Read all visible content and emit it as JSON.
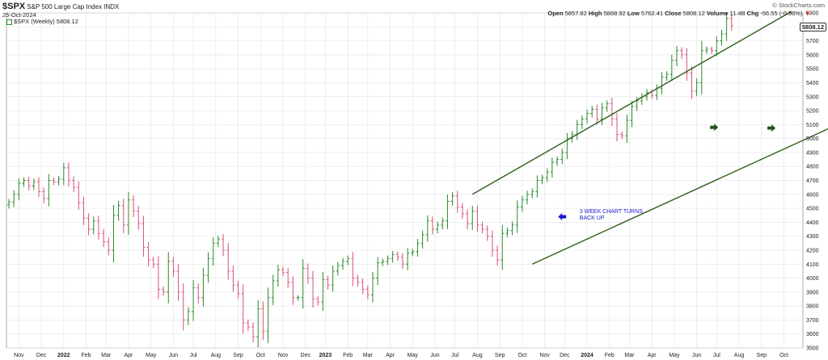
{
  "header": {
    "symbol": "$SPX",
    "name": "S&P 500 Large Cap Index",
    "exchange": "INDX",
    "date": "25-Oct-2024",
    "legend": "$SPX (Weekly) 5808.12",
    "watermark": "© StockCharts.com",
    "open_label": "Open",
    "open": "5857.82",
    "high_label": "High",
    "high": "5868.92",
    "low_label": "Low",
    "low": "5762.41",
    "close_label": "Close",
    "close": "5808.12",
    "volume_label": "Volume",
    "volume": "11.4B",
    "chg_label": "Chg",
    "chg": "-56.55 (-0.96%)",
    "chg_arrow": "▼",
    "last_price": "5808.12"
  },
  "colors": {
    "up": "#2a8a2a",
    "down": "#d9507a",
    "channel": "#2e5e1e",
    "grid": "#e6e6e6",
    "annotation_text": "#1a1acc",
    "annotation_arrow": "#1a1acc",
    "marker_arrow": "#24521e"
  },
  "chart_data": {
    "type": "ohlc",
    "title": "$SPX S&P 500 Large Cap Index INDX",
    "interval": "weekly",
    "xlabel": "",
    "ylabel": "",
    "ylim": [
      3500,
      5900
    ],
    "y_ticks": [
      3500,
      3600,
      3700,
      3800,
      3900,
      4000,
      4100,
      4200,
      4300,
      4400,
      4500,
      4600,
      4700,
      4800,
      4900,
      5000,
      5100,
      5200,
      5300,
      5400,
      5500,
      5600,
      5700,
      5800,
      5900
    ],
    "x_ticks": [
      {
        "label": "Nov",
        "idx": 2,
        "bold": false
      },
      {
        "label": "Dec",
        "idx": 6.5,
        "bold": false
      },
      {
        "label": "2022",
        "idx": 11,
        "bold": true
      },
      {
        "label": "Feb",
        "idx": 15.5,
        "bold": false
      },
      {
        "label": "Mar",
        "idx": 19.5,
        "bold": false
      },
      {
        "label": "Apr",
        "idx": 24,
        "bold": false
      },
      {
        "label": "May",
        "idx": 28.5,
        "bold": false
      },
      {
        "label": "Jun",
        "idx": 33,
        "bold": false
      },
      {
        "label": "Jul",
        "idx": 37,
        "bold": false
      },
      {
        "label": "Aug",
        "idx": 41.5,
        "bold": false
      },
      {
        "label": "Sep",
        "idx": 46,
        "bold": false
      },
      {
        "label": "Oct",
        "idx": 50.5,
        "bold": false
      },
      {
        "label": "Nov",
        "idx": 55,
        "bold": false
      },
      {
        "label": "Dec",
        "idx": 59.5,
        "bold": false
      },
      {
        "label": "2023",
        "idx": 63.5,
        "bold": true
      },
      {
        "label": "Feb",
        "idx": 68,
        "bold": false
      },
      {
        "label": "Mar",
        "idx": 72,
        "bold": false
      },
      {
        "label": "Apr",
        "idx": 76.5,
        "bold": false
      },
      {
        "label": "May",
        "idx": 81,
        "bold": false
      },
      {
        "label": "Jun",
        "idx": 85.5,
        "bold": false
      },
      {
        "label": "Jul",
        "idx": 89.5,
        "bold": false
      },
      {
        "label": "Aug",
        "idx": 94,
        "bold": false
      },
      {
        "label": "Sep",
        "idx": 98.5,
        "bold": false
      },
      {
        "label": "Oct",
        "idx": 103,
        "bold": false
      },
      {
        "label": "Nov",
        "idx": 107.5,
        "bold": false
      },
      {
        "label": "Dec",
        "idx": 111.5,
        "bold": false
      },
      {
        "label": "2024",
        "idx": 116,
        "bold": true
      },
      {
        "label": "Feb",
        "idx": 120.5,
        "bold": false
      },
      {
        "label": "Mar",
        "idx": 124.5,
        "bold": false
      },
      {
        "label": "Apr",
        "idx": 129,
        "bold": false
      },
      {
        "label": "May",
        "idx": 133.5,
        "bold": false
      },
      {
        "label": "Jun",
        "idx": 138,
        "bold": false
      },
      {
        "label": "Jul",
        "idx": 142,
        "bold": false
      },
      {
        "label": "Aug",
        "idx": 146.5,
        "bold": false
      },
      {
        "label": "Sep",
        "idx": 151,
        "bold": false
      },
      {
        "label": "Oct",
        "idx": 155.5,
        "bold": false
      }
    ],
    "closes": [
      4545,
      4600,
      4680,
      4700,
      4660,
      4690,
      4620,
      4570,
      4700,
      4690,
      4710,
      4790,
      4700,
      4650,
      4540,
      4430,
      4350,
      4410,
      4320,
      4260,
      4200,
      4450,
      4520,
      4380,
      4560,
      4480,
      4390,
      4220,
      4130,
      4100,
      3920,
      3900,
      4120,
      4050,
      3900,
      3700,
      3760,
      3930,
      3860,
      4020,
      4140,
      4250,
      4280,
      4200,
      4050,
      3950,
      3890,
      3680,
      3650,
      3580,
      3780,
      3620,
      3860,
      3980,
      4060,
      4040,
      3970,
      3860,
      3860,
      4070,
      4000,
      3850,
      3830,
      3990,
      3950,
      4050,
      4090,
      4120,
      4140,
      4000,
      3970,
      3920,
      3880,
      4000,
      4110,
      4120,
      4140,
      4170,
      4150,
      4100,
      4180,
      4190,
      4250,
      4310,
      4410,
      4350,
      4380,
      4410,
      4550,
      4590,
      4510,
      4460,
      4390,
      4480,
      4380,
      4350,
      4300,
      4200,
      4130,
      4320,
      4340,
      4380,
      4510,
      4560,
      4600,
      4620,
      4700,
      4720,
      4760,
      4830,
      4850,
      4900,
      5000,
      5030,
      5100,
      5140,
      5180,
      5210,
      5140,
      5220,
      5250,
      5140,
      5030,
      5020,
      5130,
      5230,
      5270,
      5300,
      5330,
      5310,
      5360,
      5440,
      5460,
      5560,
      5630,
      5600,
      5470,
      5340,
      5400,
      5630,
      5640,
      5630,
      5700,
      5750,
      5860,
      5808
    ],
    "channel": {
      "upper": {
        "start": {
          "idx": 93,
          "price": 4600
        },
        "end": {
          "idx": 157,
          "price": 5910
        }
      },
      "lower": {
        "start": {
          "idx": 105,
          "price": 4100
        },
        "end": {
          "idx": 165,
          "price": 5080
        }
      }
    },
    "annotations": [
      {
        "text": "3 WEEK CHART TURNS BACK UP",
        "idx": 114.5,
        "price": 4465,
        "arrow_idx": 111,
        "arrow_price": 4440
      }
    ],
    "markers": [
      {
        "type": "right-arrow",
        "idx": 141.5,
        "price": 5080
      },
      {
        "type": "right-arrow",
        "idx": 153,
        "price": 5075
      }
    ]
  }
}
